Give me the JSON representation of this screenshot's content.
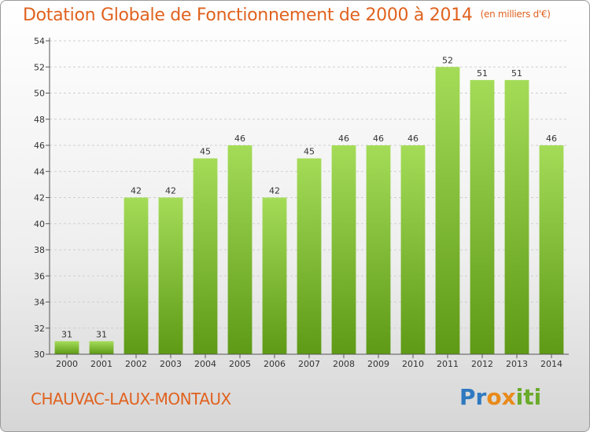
{
  "header": {
    "title": "Dotation Globale de Fonctionnement de 2000 à 2014",
    "unit": "(en milliers d'€)"
  },
  "footer": {
    "commune": "CHAUVAC-LAUX-MONTAUX",
    "logo": {
      "letters": [
        "P",
        "r",
        "o",
        "x",
        "i",
        "t",
        "i"
      ],
      "colors": [
        "#2e79c0",
        "#2e79c0",
        "#e88a1a",
        "#e88a1a",
        "#6aab2b",
        "#6aab2b",
        "#6aab2b"
      ]
    }
  },
  "colors": {
    "title": "#e0621f",
    "bar_top": "#a4dc58",
    "bar_bottom": "#5e9a16",
    "grid": "#cfcfcf"
  },
  "chart_data": {
    "type": "bar",
    "title": "Dotation Globale de Fonctionnement de 2000 à 2014",
    "subtitle": "(en milliers d'€)",
    "xlabel": "",
    "ylabel": "",
    "ylim": [
      30,
      54
    ],
    "yticks": [
      30,
      32,
      34,
      36,
      38,
      40,
      42,
      44,
      46,
      48,
      50,
      52,
      54
    ],
    "grid": true,
    "categories": [
      "2000",
      "2001",
      "2002",
      "2003",
      "2004",
      "2005",
      "2006",
      "2007",
      "2008",
      "2009",
      "2010",
      "2011",
      "2012",
      "2013",
      "2014"
    ],
    "values": [
      31,
      31,
      42,
      42,
      45,
      46,
      42,
      45,
      46,
      46,
      46,
      52,
      51,
      51,
      46
    ]
  }
}
